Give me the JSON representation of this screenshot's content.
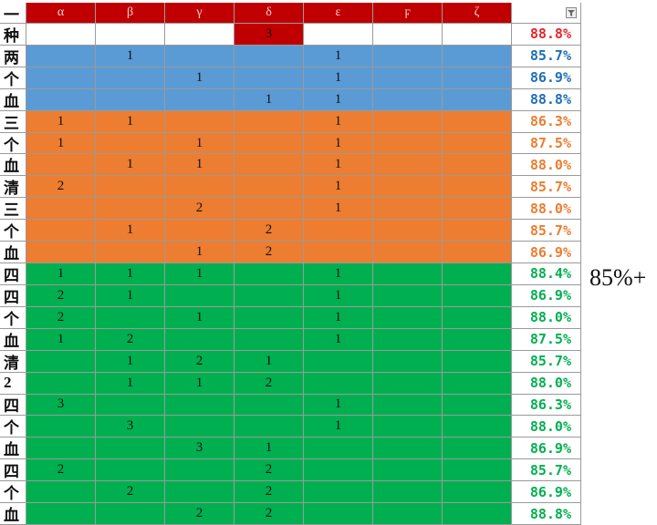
{
  "table": {
    "corner": "一",
    "columns": [
      "α",
      "β",
      "γ",
      "δ",
      "ε",
      "ϝ",
      "ζ"
    ],
    "header_fill": "#c00000",
    "groups": [
      {
        "fill": "#ffffff",
        "mark_fill": "#c00000",
        "pct_color": "#e8242a",
        "rows": [
          {
            "label": "种",
            "cells": [
              null,
              null,
              null,
              3,
              null,
              null,
              null
            ],
            "pct": "88.8%"
          }
        ]
      },
      {
        "fill": "#5b9bd5",
        "pct_color": "#1f6fb5",
        "rows": [
          {
            "label": "两",
            "cells": [
              null,
              1,
              null,
              null,
              1,
              null,
              null
            ],
            "pct": "85.7%"
          },
          {
            "label": "个",
            "cells": [
              null,
              null,
              1,
              null,
              1,
              null,
              null
            ],
            "pct": "86.9%"
          },
          {
            "label": "血",
            "cells": [
              null,
              null,
              null,
              1,
              1,
              null,
              null
            ],
            "pct": "88.8%"
          }
        ]
      },
      {
        "fill": "#ed7d31",
        "pct_color": "#ed7d31",
        "rows": [
          {
            "label": "三",
            "cells": [
              1,
              1,
              null,
              null,
              1,
              null,
              null
            ],
            "pct": "86.3%"
          },
          {
            "label": "个",
            "cells": [
              1,
              null,
              1,
              null,
              1,
              null,
              null
            ],
            "pct": "87.5%"
          },
          {
            "label": "血",
            "cells": [
              null,
              1,
              1,
              null,
              1,
              null,
              null
            ],
            "pct": "88.0%"
          },
          {
            "label": "清",
            "cells": [
              2,
              null,
              null,
              null,
              1,
              null,
              null
            ],
            "pct": "85.7%"
          },
          {
            "label": "三",
            "cells": [
              null,
              null,
              2,
              null,
              1,
              null,
              null
            ],
            "pct": "88.0%"
          },
          {
            "label": "个",
            "cells": [
              null,
              1,
              null,
              2,
              null,
              null,
              null
            ],
            "pct": "85.7%"
          },
          {
            "label": "血",
            "cells": [
              null,
              null,
              1,
              2,
              null,
              null,
              null
            ],
            "pct": "86.9%"
          }
        ]
      },
      {
        "fill": "#00b050",
        "pct_color": "#00b050",
        "rows": [
          {
            "label": "四",
            "cells": [
              1,
              1,
              1,
              null,
              1,
              null,
              null
            ],
            "pct": "88.4%"
          },
          {
            "label": "四",
            "cells": [
              2,
              1,
              null,
              null,
              1,
              null,
              null
            ],
            "pct": "86.9%"
          },
          {
            "label": "个",
            "cells": [
              2,
              null,
              1,
              null,
              1,
              null,
              null
            ],
            "pct": "88.0%"
          },
          {
            "label": "血",
            "cells": [
              1,
              2,
              null,
              null,
              1,
              null,
              null
            ],
            "pct": "87.5%"
          },
          {
            "label": "清",
            "cells": [
              null,
              1,
              2,
              1,
              null,
              null,
              null
            ],
            "pct": "85.7%"
          },
          {
            "label": "2",
            "cells": [
              null,
              1,
              1,
              2,
              null,
              null,
              null
            ],
            "pct": "88.0%"
          },
          {
            "label": "四",
            "cells": [
              3,
              null,
              null,
              null,
              1,
              null,
              null
            ],
            "pct": "86.3%"
          },
          {
            "label": "个",
            "cells": [
              null,
              3,
              null,
              null,
              1,
              null,
              null
            ],
            "pct": "88.0%"
          },
          {
            "label": "血",
            "cells": [
              null,
              null,
              3,
              1,
              null,
              null,
              null
            ],
            "pct": "86.9%"
          },
          {
            "label": "四",
            "cells": [
              2,
              null,
              null,
              2,
              null,
              null,
              null
            ],
            "pct": "85.7%"
          },
          {
            "label": "个",
            "cells": [
              null,
              2,
              null,
              2,
              null,
              null,
              null
            ],
            "pct": "86.9%"
          },
          {
            "label": "血",
            "cells": [
              null,
              null,
              2,
              2,
              null,
              null,
              null
            ],
            "pct": "88.8%"
          }
        ]
      }
    ],
    "side_note": "85%+"
  }
}
